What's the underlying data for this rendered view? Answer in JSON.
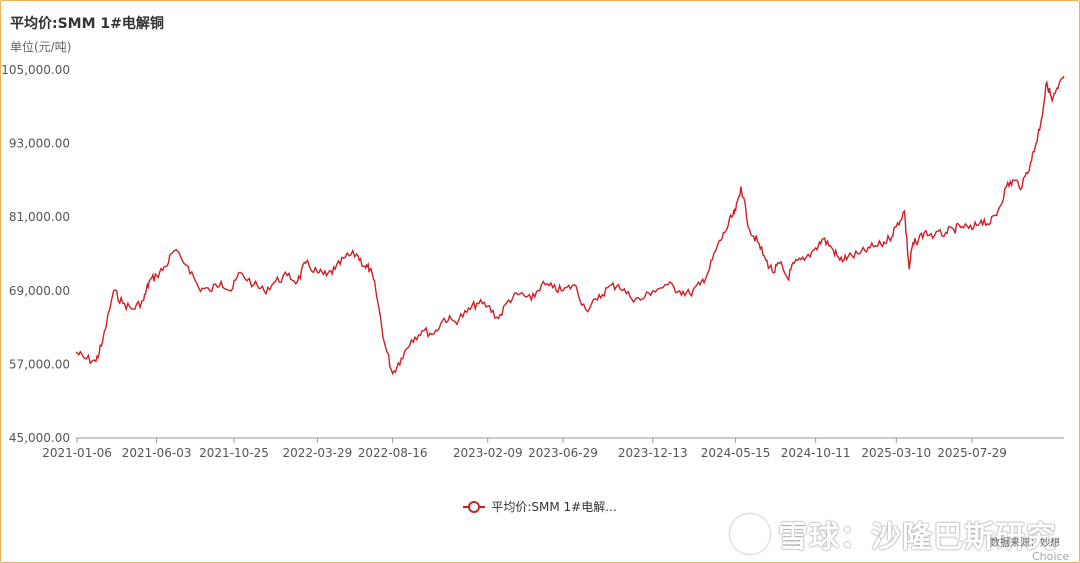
{
  "title": "平均价:SMM 1#电解铜",
  "unit_label": "单位(元/吨)",
  "legend_label": "平均价:SMM 1#电解...",
  "watermark_text": "雪球：沙隆巴斯研究",
  "source_text": "数据来源：妙想",
  "source_text2": "Choice",
  "colors": {
    "line": "#cf1f26",
    "frame": "#e8b25a",
    "axis_text": "#555"
  },
  "chart_data": {
    "type": "line",
    "title": "平均价:SMM 1#电解铜",
    "ylabel": "单位(元/吨)",
    "ylim": [
      45000,
      105000
    ],
    "yticks": [
      45000,
      57000,
      69000,
      81000,
      93000,
      105000
    ],
    "ytick_labels": [
      "45,000.00",
      "57,000.00",
      "69,000.00",
      "81,000.00",
      "93,000.00",
      "105,000.00"
    ],
    "xlim": [
      "2021-01-04",
      "2026-01-16"
    ],
    "xtick_labels": [
      "2021-01-06",
      "2021-06-03",
      "2021-10-25",
      "2022-03-29",
      "2022-08-16",
      "2023-02-09",
      "2023-06-29",
      "2023-12-13",
      "2024-05-15",
      "2024-10-11",
      "2025-03-10",
      "2025-07-29"
    ],
    "grid": false,
    "legend_position": "bottom-center",
    "series": [
      {
        "name": "平均价:SMM 1#电解...",
        "x": [
          "2021-01-04",
          "2021-01-20",
          "2021-02-10",
          "2021-02-22",
          "2021-03-15",
          "2021-04-01",
          "2021-04-20",
          "2021-05-10",
          "2021-05-20",
          "2021-06-03",
          "2021-06-20",
          "2021-07-05",
          "2021-08-01",
          "2021-08-20",
          "2021-09-10",
          "2021-10-01",
          "2021-10-20",
          "2021-11-05",
          "2021-12-01",
          "2021-12-20",
          "2022-01-10",
          "2022-02-01",
          "2022-02-20",
          "2022-03-07",
          "2022-03-29",
          "2022-04-15",
          "2022-05-01",
          "2022-05-20",
          "2022-06-10",
          "2022-06-25",
          "2022-07-05",
          "2022-07-15",
          "2022-08-01",
          "2022-08-16",
          "2022-09-01",
          "2022-09-20",
          "2022-10-10",
          "2022-11-01",
          "2022-11-20",
          "2022-12-10",
          "2023-01-01",
          "2023-01-20",
          "2023-02-09",
          "2023-03-01",
          "2023-03-20",
          "2023-04-10",
          "2023-05-01",
          "2023-05-20",
          "2023-06-10",
          "2023-06-29",
          "2023-07-20",
          "2023-08-10",
          "2023-09-01",
          "2023-09-20",
          "2023-10-10",
          "2023-11-01",
          "2023-11-20",
          "2023-12-13",
          "2024-01-10",
          "2024-02-01",
          "2024-02-20",
          "2024-03-10",
          "2024-03-25",
          "2024-04-10",
          "2024-04-25",
          "2024-05-08",
          "2024-05-15",
          "2024-05-25",
          "2024-06-10",
          "2024-06-25",
          "2024-07-10",
          "2024-07-25",
          "2024-08-05",
          "2024-08-20",
          "2024-09-01",
          "2024-09-20",
          "2024-10-11",
          "2024-10-25",
          "2024-11-10",
          "2024-11-25",
          "2024-12-10",
          "2025-01-01",
          "2025-01-20",
          "2025-02-10",
          "2025-02-25",
          "2025-03-10",
          "2025-03-25",
          "2025-04-03",
          "2025-04-08",
          "2025-04-15",
          "2025-05-01",
          "2025-05-20",
          "2025-06-10",
          "2025-06-25",
          "2025-07-10",
          "2025-07-29",
          "2025-08-15",
          "2025-09-01",
          "2025-09-15",
          "2025-10-01",
          "2025-10-15",
          "2025-10-30",
          "2025-11-15",
          "2025-11-25",
          "2025-12-05",
          "2025-12-15",
          "2025-12-25",
          "2026-01-05",
          "2026-01-16"
        ],
        "values": [
          59000,
          58000,
          57500,
          60500,
          69000,
          67000,
          66000,
          67500,
          70500,
          71500,
          73000,
          75500,
          73000,
          69500,
          69000,
          70500,
          69000,
          72000,
          70000,
          69000,
          70500,
          71500,
          70500,
          73500,
          72000,
          71500,
          72500,
          74500,
          75000,
          73000,
          72500,
          69500,
          60500,
          55500,
          58000,
          61000,
          62500,
          62000,
          64500,
          64000,
          65500,
          67000,
          66500,
          64500,
          67500,
          68500,
          67500,
          70000,
          69500,
          69000,
          70000,
          66000,
          67500,
          69500,
          70000,
          68000,
          67500,
          69000,
          70000,
          69000,
          68500,
          70000,
          72000,
          76000,
          78500,
          81000,
          82000,
          86000,
          79000,
          77000,
          74000,
          72000,
          73500,
          71000,
          73500,
          74000,
          76000,
          77500,
          76000,
          74000,
          74500,
          75000,
          76000,
          76500,
          77500,
          79500,
          82000,
          72500,
          76000,
          77000,
          78500,
          78000,
          78500,
          79000,
          79500,
          79000,
          80500,
          80000,
          82000,
          86000,
          87000,
          86000,
          90000,
          93000,
          97000,
          103000,
          100000,
          102000,
          104000
        ]
      }
    ]
  }
}
